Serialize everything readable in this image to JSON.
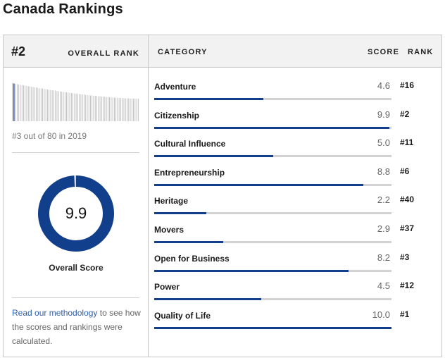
{
  "page": {
    "title": "Canada Rankings"
  },
  "overall": {
    "rank": "#2",
    "rank_label": "OVERALL RANK",
    "previous": "#3 out of 80 in 2019",
    "score": "9.9",
    "score_fraction": 0.99,
    "score_label": "Overall Score",
    "donut_color": "#113f8c",
    "history_count": 80,
    "highlight_index": 1
  },
  "methodology": {
    "link_text": "Read our methodology",
    "rest_text": " to see how the scores and rankings were calculated."
  },
  "table": {
    "headers": {
      "category": "CATEGORY",
      "score": "SCORE",
      "rank": "RANK"
    },
    "rows": [
      {
        "name": "Adventure",
        "score": "4.6",
        "rank": "#16",
        "fraction": 0.46
      },
      {
        "name": "Citizenship",
        "score": "9.9",
        "rank": "#2",
        "fraction": 0.99
      },
      {
        "name": "Cultural Influence",
        "score": "5.0",
        "rank": "#11",
        "fraction": 0.5
      },
      {
        "name": "Entrepreneurship",
        "score": "8.8",
        "rank": "#6",
        "fraction": 0.88
      },
      {
        "name": "Heritage",
        "score": "2.2",
        "rank": "#40",
        "fraction": 0.22
      },
      {
        "name": "Movers",
        "score": "2.9",
        "rank": "#37",
        "fraction": 0.29
      },
      {
        "name": "Open for Business",
        "score": "8.2",
        "rank": "#3",
        "fraction": 0.82
      },
      {
        "name": "Power",
        "score": "4.5",
        "rank": "#12",
        "fraction": 0.45
      },
      {
        "name": "Quality of Life",
        "score": "10.0",
        "rank": "#1",
        "fraction": 1.0
      }
    ]
  },
  "colors": {
    "accent": "#113f8c",
    "track": "#d3d3d3",
    "link": "#2f5fa8"
  }
}
